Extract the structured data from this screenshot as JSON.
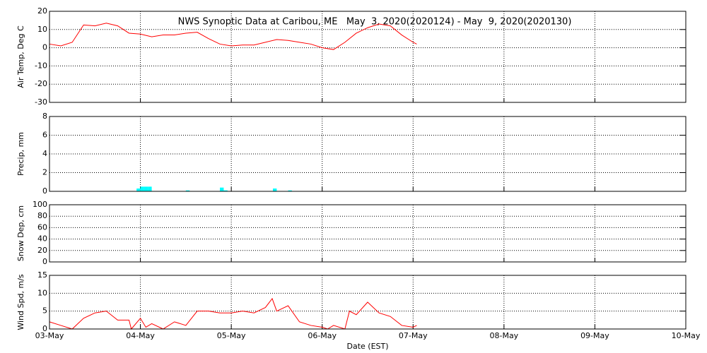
{
  "x_axis": {
    "label": "Date (EST)",
    "xlim": [
      0,
      7
    ],
    "xticks": [
      {
        "value": 0,
        "label": "03-May"
      },
      {
        "value": 1,
        "label": "04-May"
      },
      {
        "value": 2,
        "label": "05-May"
      },
      {
        "value": 3,
        "label": "06-May"
      },
      {
        "value": 4,
        "label": "07-May"
      },
      {
        "value": 5,
        "label": "08-May"
      },
      {
        "value": 6,
        "label": "09-May"
      },
      {
        "value": 7,
        "label": "10-May"
      }
    ]
  },
  "chart_data": [
    {
      "type": "line",
      "title": "NWS Synoptic Data at Caribou, ME   May  3, 2020(2020124) - May  9, 2020(2020130)",
      "y_label": "Air Temp, Deg C",
      "ylim": [
        -30,
        20
      ],
      "yticks": [
        -30,
        -20,
        -10,
        0,
        10,
        20
      ],
      "grid": true,
      "x": [
        0,
        0.125,
        0.25,
        0.375,
        0.5,
        0.625,
        0.75,
        0.875,
        1.0,
        1.125,
        1.25,
        1.375,
        1.5,
        1.625,
        1.75,
        1.875,
        2.0,
        2.125,
        2.25,
        2.375,
        2.5,
        2.625,
        2.75,
        2.875,
        3.0,
        3.125,
        3.25,
        3.375,
        3.5,
        3.625,
        3.75,
        3.875,
        4.0,
        4.04
      ],
      "series": [
        {
          "color": "#ff0000",
          "values": [
            2,
            1,
            3,
            12.5,
            12,
            13.5,
            12,
            8,
            7.5,
            6,
            7,
            7,
            8,
            8.5,
            5,
            2,
            1,
            1.5,
            1.5,
            3,
            4.5,
            4,
            3,
            2,
            0,
            -1,
            3,
            8,
            11,
            13,
            12,
            7,
            3,
            2
          ]
        }
      ]
    },
    {
      "type": "bar",
      "y_label": "Precip, mm",
      "ylim": [
        0,
        8
      ],
      "yticks": [
        0,
        2,
        4,
        6,
        8
      ],
      "grid": true,
      "x": [
        0.958,
        1.0,
        1.042,
        1.083,
        1.5,
        1.875,
        1.917,
        2.458,
        2.625
      ],
      "series": [
        {
          "color": "#00ffff",
          "values": [
            0.3,
            0.5,
            0.5,
            0.5,
            0.1,
            0.4,
            0.1,
            0.3,
            0.1
          ]
        }
      ]
    },
    {
      "type": "line",
      "y_label": "Snow Dep, cm",
      "ylim": [
        0,
        100
      ],
      "yticks": [
        0,
        20,
        40,
        60,
        80,
        100
      ],
      "grid": true,
      "x": [],
      "series": []
    },
    {
      "type": "line",
      "y_label": "Wind Spd, m/s",
      "ylim": [
        0,
        15
      ],
      "yticks": [
        0,
        5,
        10,
        15
      ],
      "grid": true,
      "x": [
        0,
        0.125,
        0.25,
        0.375,
        0.5,
        0.625,
        0.75,
        0.875,
        0.9,
        1.0,
        1.06,
        1.125,
        1.25,
        1.375,
        1.5,
        1.625,
        1.75,
        1.875,
        2.0,
        2.125,
        2.25,
        2.375,
        2.45,
        2.5,
        2.625,
        2.75,
        2.875,
        3.0,
        3.06,
        3.125,
        3.25,
        3.3,
        3.375,
        3.5,
        3.625,
        3.75,
        3.875,
        4.0,
        4.04
      ],
      "series": [
        {
          "color": "#ff0000",
          "values": [
            2,
            1,
            0,
            3,
            4.5,
            5,
            2.5,
            2.5,
            0,
            3,
            0.5,
            1.5,
            0,
            2,
            1,
            5,
            5,
            4.5,
            4.5,
            5,
            4.5,
            6,
            8.5,
            5,
            6.5,
            2,
            1,
            0.5,
            0,
            1,
            0,
            5,
            4,
            7.5,
            4.5,
            3.5,
            1,
            0.5,
            1
          ]
        }
      ]
    }
  ]
}
